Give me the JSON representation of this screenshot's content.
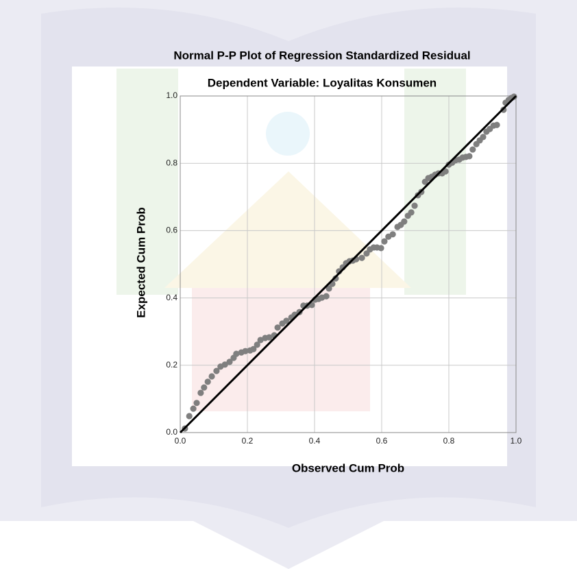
{
  "chart_data": {
    "type": "scatter",
    "title": "Normal P-P Plot of Regression Standardized Residual",
    "subtitle": "Dependent Variable: Loyalitas Konsumen",
    "x_label": "Observed Cum Prob",
    "y_label": "Expected Cum Prob",
    "xlim": [
      0,
      1
    ],
    "ylim": [
      0,
      1
    ],
    "xticks": [
      {
        "value": 0,
        "label": "0.0"
      },
      0.2,
      0.4,
      0.6,
      0.8,
      {
        "value": 1,
        "label": "1.0"
      }
    ],
    "yticks": [
      {
        "value": 0,
        "label": "0.0"
      },
      0.2,
      0.4,
      0.6,
      0.8,
      {
        "value": 1,
        "label": "1.0"
      }
    ],
    "grid": true,
    "reference_line": true,
    "series": [
      {
        "color": "#7f7f7f",
        "x": [
          0.014,
          0.027,
          0.039,
          0.049,
          0.061,
          0.071,
          0.082,
          0.094,
          0.108,
          0.12,
          0.133,
          0.147,
          0.159,
          0.167,
          0.182,
          0.194,
          0.208,
          0.218,
          0.229,
          0.239,
          0.253,
          0.265,
          0.28,
          0.29,
          0.304,
          0.316,
          0.331,
          0.341,
          0.355,
          0.367,
          0.378,
          0.392,
          0.402,
          0.412,
          0.422,
          0.435,
          0.443,
          0.453,
          0.463,
          0.473,
          0.484,
          0.494,
          0.504,
          0.514,
          0.524,
          0.541,
          0.555,
          0.565,
          0.576,
          0.586,
          0.598,
          0.608,
          0.62,
          0.633,
          0.647,
          0.657,
          0.667,
          0.678,
          0.688,
          0.698,
          0.708,
          0.718,
          0.729,
          0.739,
          0.749,
          0.759,
          0.769,
          0.78,
          0.79,
          0.8,
          0.81,
          0.82,
          0.831,
          0.841,
          0.851,
          0.861,
          0.871,
          0.882,
          0.892,
          0.902,
          0.912,
          0.922,
          0.933,
          0.943,
          0.963,
          0.969,
          0.978,
          0.986,
          0.994
        ],
        "values": [
          0.012,
          0.049,
          0.071,
          0.088,
          0.118,
          0.134,
          0.151,
          0.167,
          0.183,
          0.196,
          0.202,
          0.21,
          0.222,
          0.234,
          0.238,
          0.242,
          0.244,
          0.248,
          0.261,
          0.275,
          0.281,
          0.283,
          0.289,
          0.312,
          0.324,
          0.332,
          0.342,
          0.35,
          0.358,
          0.377,
          0.377,
          0.379,
          0.395,
          0.397,
          0.401,
          0.405,
          0.428,
          0.442,
          0.458,
          0.479,
          0.491,
          0.503,
          0.509,
          0.511,
          0.515,
          0.519,
          0.532,
          0.544,
          0.55,
          0.55,
          0.548,
          0.568,
          0.582,
          0.589,
          0.611,
          0.617,
          0.627,
          0.644,
          0.654,
          0.674,
          0.705,
          0.715,
          0.745,
          0.756,
          0.76,
          0.766,
          0.77,
          0.77,
          0.776,
          0.796,
          0.802,
          0.809,
          0.811,
          0.817,
          0.819,
          0.821,
          0.841,
          0.857,
          0.868,
          0.878,
          0.894,
          0.902,
          0.912,
          0.914,
          0.959,
          0.98,
          0.988,
          0.994,
          0.998
        ]
      }
    ]
  }
}
